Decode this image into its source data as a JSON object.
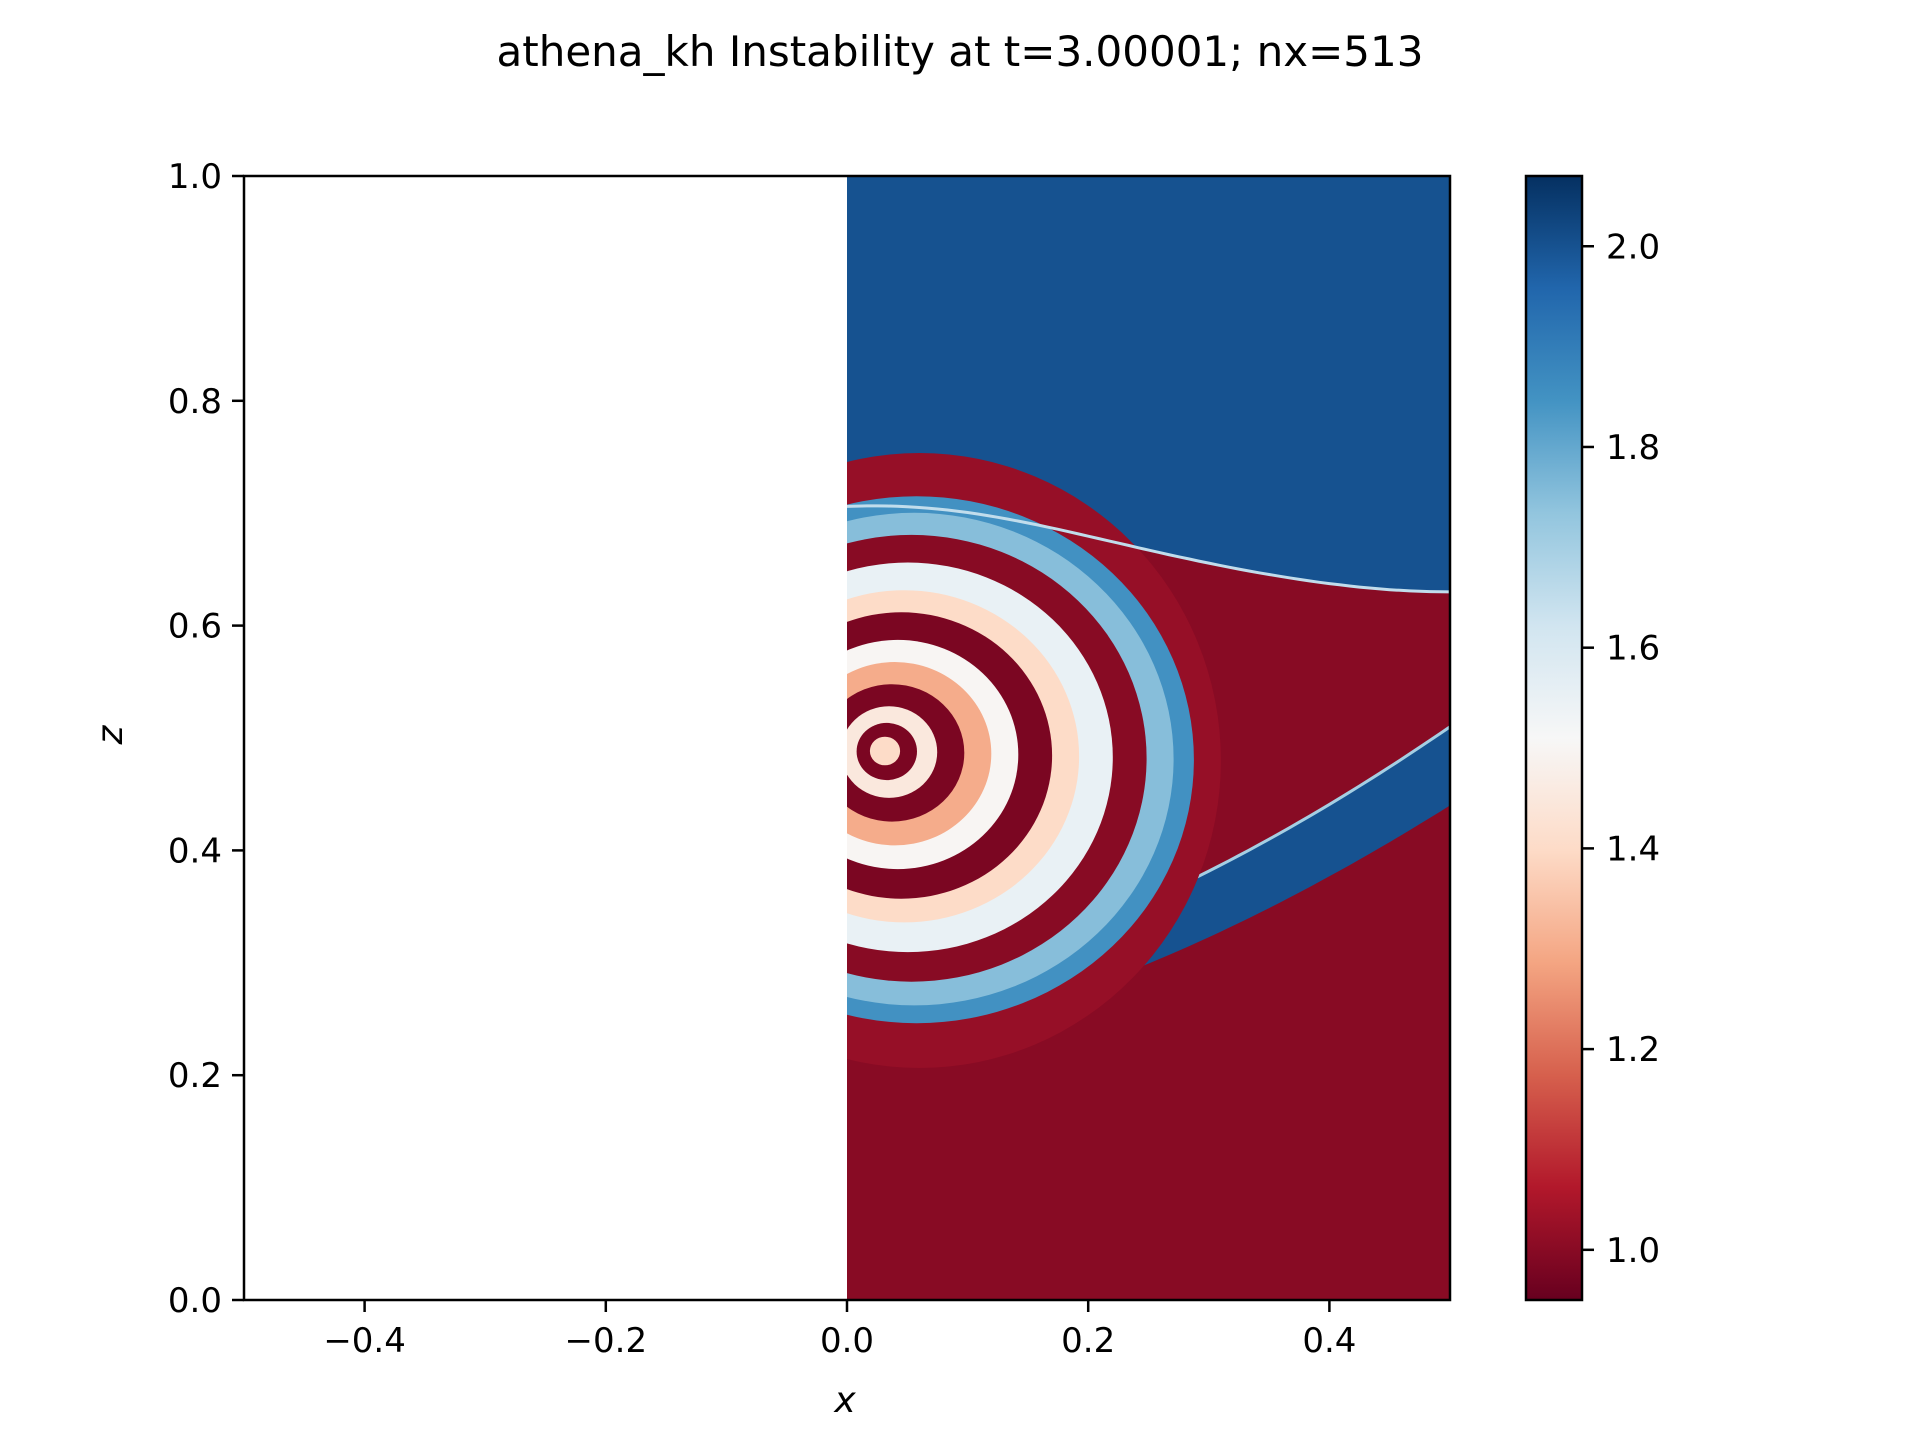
{
  "chart_data": {
    "type": "heatmap",
    "title": "athena_kh Instability at t=3.00001; nx=513",
    "xlabel": "x",
    "ylabel": "z",
    "xlim": [
      -0.5,
      0.5
    ],
    "ylim": [
      0.0,
      1.0
    ],
    "x_ticks": [
      {
        "value": -0.4,
        "label": "−0.4"
      },
      {
        "value": -0.2,
        "label": "−0.2"
      },
      {
        "value": 0.0,
        "label": "0.0"
      },
      {
        "value": 0.2,
        "label": "0.2"
      },
      {
        "value": 0.4,
        "label": "0.4"
      }
    ],
    "y_ticks": [
      {
        "value": 0.0,
        "label": "0.0"
      },
      {
        "value": 0.2,
        "label": "0.2"
      },
      {
        "value": 0.4,
        "label": "0.4"
      },
      {
        "value": 0.6,
        "label": "0.6"
      },
      {
        "value": 0.8,
        "label": "0.8"
      },
      {
        "value": 1.0,
        "label": "1.0"
      }
    ],
    "data_extent_x": [
      0.0,
      0.5
    ],
    "colormap": "RdBu",
    "colorbar": {
      "range": [
        0.95,
        2.07
      ],
      "ticks": [
        {
          "value": 1.0,
          "label": "1.0"
        },
        {
          "value": 1.2,
          "label": "1.2"
        },
        {
          "value": 1.4,
          "label": "1.4"
        },
        {
          "value": 1.6,
          "label": "1.6"
        },
        {
          "value": 1.8,
          "label": "1.8"
        },
        {
          "value": 2.0,
          "label": "2.0"
        }
      ]
    },
    "field": {
      "upper_value": 2.0,
      "lower_value": 1.0,
      "upper_interface_z_at_x0": 0.7,
      "upper_interface_z_at_xmax": 0.63,
      "vortex_center": [
        0.06,
        0.48
      ],
      "spiral_max_radius_x": 0.31,
      "lower_band_value": 2.0,
      "lower_band_z_at_x0": [
        0.23,
        0.28
      ],
      "lower_band_z_at_xmax": [
        0.44,
        0.51
      ]
    },
    "grid": false,
    "legend": "none"
  },
  "colors": {
    "cmap_stops": [
      "#67001f",
      "#b2182b",
      "#d6604d",
      "#f4a582",
      "#fddbc7",
      "#f7f7f7",
      "#d1e5f0",
      "#92c5de",
      "#4393c3",
      "#2166ac",
      "#053061"
    ]
  }
}
